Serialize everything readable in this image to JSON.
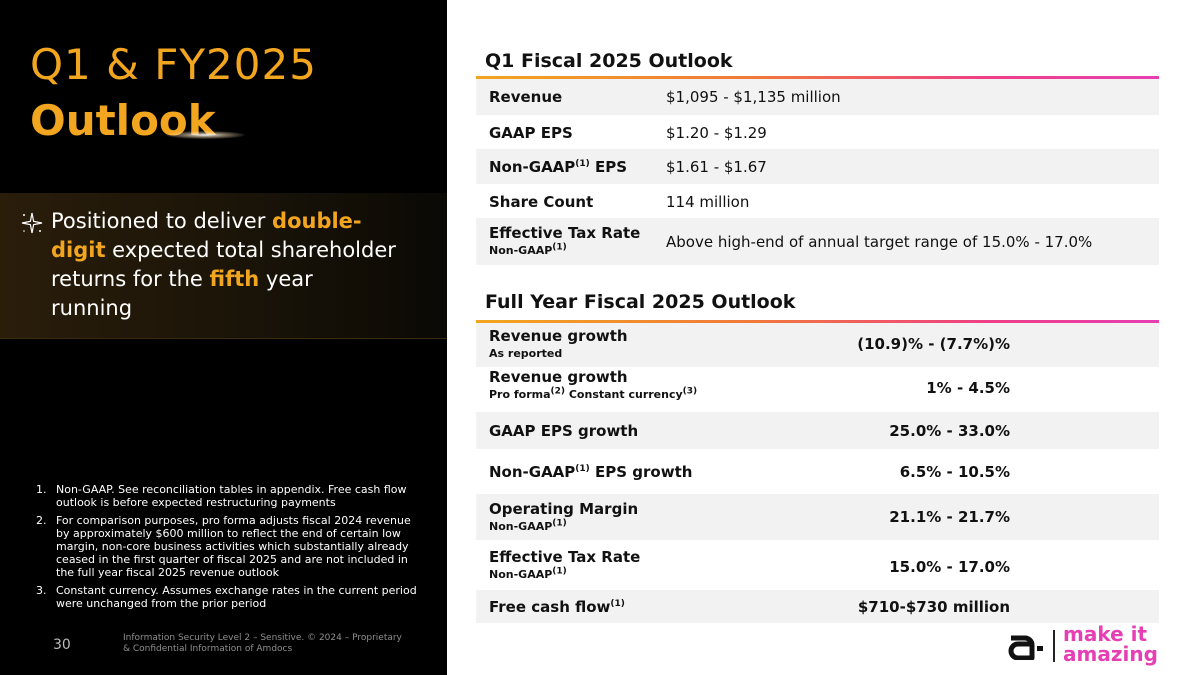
{
  "left_panel": {
    "title_line1": "Q1 & FY2025",
    "title_line2": "Outlook",
    "callout": {
      "t1": "Positioned to deliver ",
      "h1": "double-digit",
      "t2": " expected total shareholder returns for the ",
      "h2": "fifth",
      "t3": " year running"
    },
    "notes": [
      {
        "num": "1.",
        "text": "Non-GAAP. See reconciliation tables in appendix. Free cash flow outlook is before expected restructuring payments"
      },
      {
        "num": "2.",
        "text": "For comparison purposes, pro forma adjusts fiscal 2024 revenue by approximately $600 million to reflect the end of certain low margin, non-core business activities which substantially already ceased in the first quarter of fiscal 2025 and are not included in the full year fiscal 2025 revenue outlook"
      },
      {
        "num": "3.",
        "text": "Constant currency. Assumes exchange rates in the current period were unchanged from the prior period"
      }
    ],
    "page_number": "30",
    "legal": "Information Security Level 2 – Sensitive. © 2024 – Proprietary & Confidential Information of Amdocs"
  },
  "q1": {
    "title": "Q1 Fiscal 2025 Outlook",
    "rows": [
      {
        "label": "Revenue",
        "value": "$1,095 - $1,135 million"
      },
      {
        "label": "GAAP EPS",
        "value": "$1.20 - $1.29"
      },
      {
        "label_a": "Non-GAAP",
        "label_sup": "(1)",
        "label_b": " EPS",
        "value": "$1.61 - $1.67"
      },
      {
        "label": "Share Count",
        "value": "114 million"
      },
      {
        "label": "Effective Tax Rate",
        "sub_a": "Non-GAAP",
        "sub_sup": "(1)",
        "value": "Above high-end of annual target range of 15.0% - 17.0%"
      }
    ]
  },
  "fy": {
    "title": "Full Year Fiscal 2025 Outlook",
    "rows": [
      {
        "label": "Revenue growth",
        "sub": "As reported",
        "value": "(10.9)% - (7.7%)%"
      },
      {
        "label": "Revenue growth",
        "sub_a": "Pro forma",
        "sub_sup1": "(2)",
        "sub_b": " Constant currency",
        "sub_sup2": "(3)",
        "value": "1% - 4.5%"
      },
      {
        "label": "GAAP EPS growth",
        "value": "25.0% - 33.0%"
      },
      {
        "label_a": "Non-GAAP",
        "label_sup": "(1)",
        "label_b": " EPS growth",
        "value": "6.5% - 10.5%"
      },
      {
        "label": "Operating Margin",
        "sub_a": "Non-GAAP",
        "sub_sup": "(1)",
        "value": "21.1% - 21.7%"
      },
      {
        "label": "Effective Tax Rate",
        "sub_a": "Non-GAAP",
        "sub_sup": "(1)",
        "value": "15.0% - 17.0%"
      },
      {
        "label_a": "Free cash flow",
        "label_sup": "(1)",
        "value": "$710-$730 million"
      }
    ]
  },
  "logo": {
    "word1": "make it",
    "word2": "amazing",
    "icon": "amdocs-logo-icon"
  },
  "colors": {
    "accent_orange": "#f2a51f",
    "accent_pink": "#e63fb4",
    "row_shade": "#f2f2f2"
  }
}
